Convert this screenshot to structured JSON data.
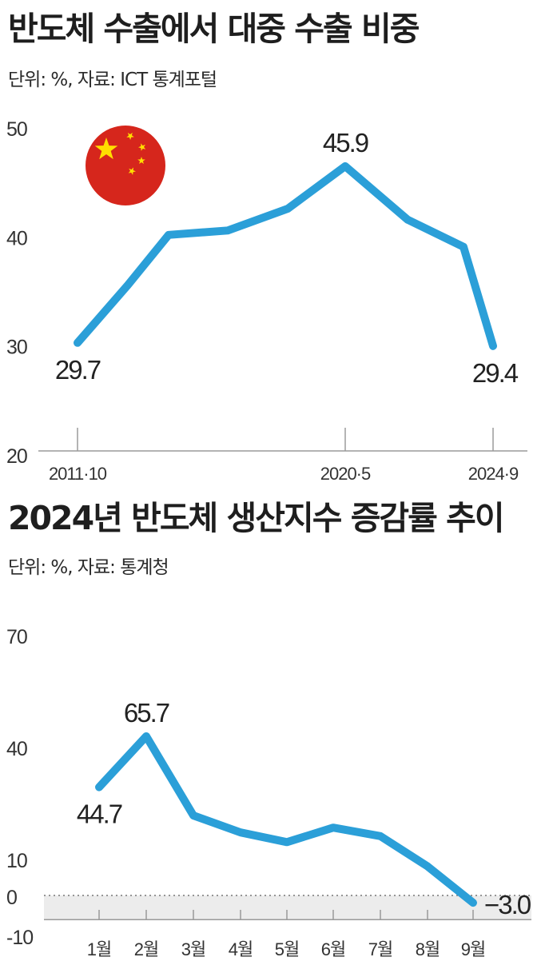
{
  "colors": {
    "line": "#2b9fd8",
    "axis": "#9a9a9a",
    "flag_red": "#d6261c",
    "flag_star": "#ffde00",
    "below_zero_fill": "#ececec"
  },
  "icons": {
    "flag": "china-flag-icon"
  },
  "chart_data": [
    {
      "type": "line",
      "title": "반도체 수출에서 대중 수출 비중",
      "subtitle": "단위: %, 자료: ICT 통계포털",
      "ylim": [
        20,
        50
      ],
      "yticks": [
        "20",
        "30",
        "40",
        "50"
      ],
      "x": [
        0,
        1,
        2,
        3,
        4,
        5,
        6,
        7,
        8
      ],
      "xtick_labels": [
        {
          "index": 0,
          "label": "2011·10"
        },
        {
          "index": 5,
          "label": "2020·5"
        },
        {
          "index": 8,
          "label": "2024·9"
        }
      ],
      "values": [
        29.7,
        35.0,
        39.6,
        40.0,
        42.0,
        45.9,
        41.0,
        38.5,
        29.4
      ],
      "data_labels": [
        {
          "index": 0,
          "text": "29.7",
          "pos": "below"
        },
        {
          "index": 5,
          "text": "45.9",
          "pos": "above"
        },
        {
          "index": 8,
          "text": "29.4",
          "pos": "below"
        }
      ],
      "grid": false
    },
    {
      "type": "line",
      "title": "2024년 반도체 생산지수 증감률 추이",
      "subtitle": "단위: %, 자료: 통계청",
      "ylim": [
        -10,
        70
      ],
      "yticks": [
        "-10",
        "0",
        "10",
        "40",
        "70"
      ],
      "categories": [
        "1월",
        "2월",
        "3월",
        "4월",
        "5월",
        "6월",
        "7월",
        "8월",
        "9월"
      ],
      "values": [
        44.7,
        65.7,
        33.0,
        26.0,
        22.0,
        28.0,
        24.5,
        12.0,
        -3.0
      ],
      "data_labels": [
        {
          "index": 0,
          "text": "44.7",
          "pos": "below"
        },
        {
          "index": 1,
          "text": "65.7",
          "pos": "above"
        },
        {
          "index": 8,
          "text": "−3.0",
          "pos": "right"
        }
      ],
      "zero_line": "dotted",
      "grid": false
    }
  ]
}
